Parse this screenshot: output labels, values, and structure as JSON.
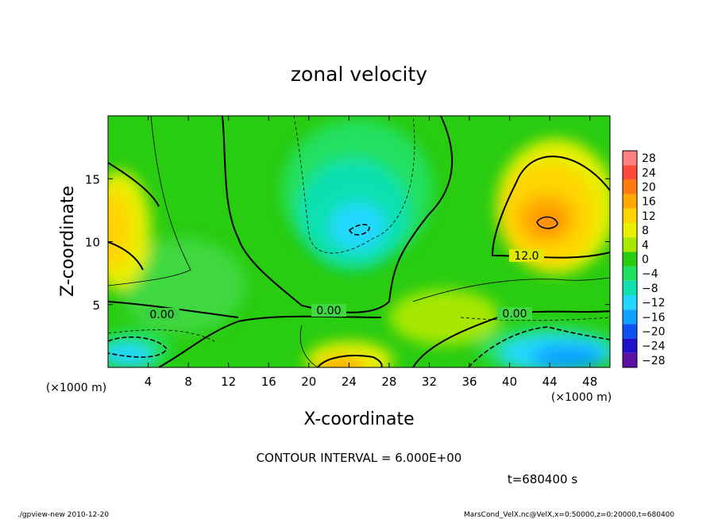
{
  "chart_data": {
    "type": "heatmap",
    "title": "zonal velocity",
    "xlabel": "X-coordinate",
    "ylabel": "Z-coordinate",
    "x_unit": "(×1000 m)",
    "y_unit": "(×1000 m)",
    "xlim": [
      0,
      50
    ],
    "ylim": [
      0,
      20
    ],
    "x_ticks": [
      4,
      8,
      12,
      16,
      20,
      24,
      28,
      32,
      36,
      40,
      44,
      48
    ],
    "y_ticks": [
      5,
      10,
      15
    ],
    "colorbar": {
      "levels": [
        28,
        24,
        20,
        16,
        12,
        8,
        4,
        0,
        -4,
        -8,
        -12,
        -16,
        -20,
        -24,
        -28
      ],
      "colors": [
        "#ff8080",
        "#ff4a3a",
        "#ff7a10",
        "#ffa800",
        "#ffd400",
        "#e8f000",
        "#a8e800",
        "#28cc10",
        "#20e060",
        "#10e0b0",
        "#20d8ff",
        "#10a0ff",
        "#1050f0",
        "#2010c8",
        "#6010a0"
      ]
    },
    "contour_labels": [
      "0.00",
      "0.00",
      "0.00",
      "12.0"
    ],
    "annotation": "CONTOUR INTERVAL = 6.000E+00",
    "time_label": "t=680400 s",
    "contour_interval": 6.0,
    "time": 680400
  },
  "footer": {
    "left": "./gpview-new  2010-12-20",
    "right": "MarsCond_VelX.nc@VelX,x=0:50000,z=0:20000,t=680400"
  }
}
